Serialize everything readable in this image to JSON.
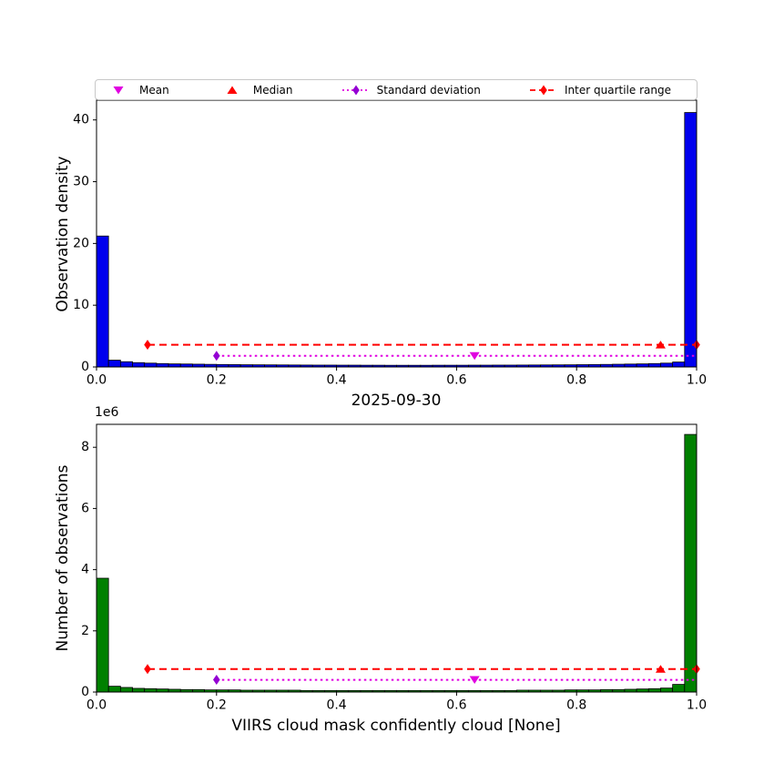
{
  "figure": {
    "background": "#ffffff"
  },
  "legend": {
    "items": [
      {
        "label": "Mean",
        "marker": "triangle-down",
        "marker_color": "#e000e0",
        "line": "none",
        "line_color": "#e000e0"
      },
      {
        "label": "Median",
        "marker": "triangle-up",
        "marker_color": "#ff0000",
        "line": "none",
        "line_color": "#ff0000"
      },
      {
        "label": "Standard deviation",
        "marker": "diamond",
        "marker_color": "#9400d3",
        "line": "dotted",
        "line_color": "#e000e0"
      },
      {
        "label": "Inter quartile range",
        "marker": "diamond",
        "marker_color": "#ff0000",
        "line": "dashed",
        "line_color": "#ff0000"
      }
    ]
  },
  "chart_data": [
    {
      "type": "bar",
      "subtype": "histogram",
      "title": "",
      "ylabel": "Observation density",
      "xlabel": "",
      "bar_color": "#0000ee",
      "edge_color": "#000000",
      "grid": false,
      "xlim": [
        0,
        1
      ],
      "ylim": [
        0,
        43.2
      ],
      "xticks": [
        0,
        0.2,
        0.4,
        0.6,
        0.8,
        1.0
      ],
      "xtick_labels": [
        "0.0",
        "0.2",
        "0.4",
        "0.6",
        "0.8",
        "1.0"
      ],
      "yticks": [
        0,
        10,
        20,
        30,
        40
      ],
      "ytick_labels": [
        "0",
        "10",
        "20",
        "30",
        "40"
      ],
      "bin_start": 0,
      "bin_width": 0.02,
      "values": [
        21.2,
        1.1,
        0.85,
        0.7,
        0.62,
        0.55,
        0.5,
        0.48,
        0.45,
        0.42,
        0.4,
        0.38,
        0.36,
        0.35,
        0.34,
        0.33,
        0.32,
        0.31,
        0.3,
        0.3,
        0.29,
        0.29,
        0.28,
        0.28,
        0.27,
        0.27,
        0.27,
        0.27,
        0.28,
        0.28,
        0.28,
        0.29,
        0.29,
        0.3,
        0.3,
        0.31,
        0.32,
        0.33,
        0.34,
        0.35,
        0.37,
        0.39,
        0.41,
        0.44,
        0.47,
        0.5,
        0.55,
        0.62,
        0.8,
        41.2
      ],
      "overlays": {
        "lines": [
          {
            "name": "inter-quartile-range-line",
            "style": "dashed",
            "color": "#ff0000",
            "x1": 0.085,
            "x2": 1.0,
            "y": 3.6
          },
          {
            "name": "standard-deviation-line",
            "style": "dotted",
            "color": "#e000e0",
            "x1": 0.2,
            "x2": 1.0,
            "y": 1.8
          }
        ],
        "points": [
          {
            "name": "iqr-left-marker",
            "marker": "diamond",
            "color": "#ff0000",
            "x": 0.085,
            "y": 3.6
          },
          {
            "name": "iqr-right-marker",
            "marker": "diamond",
            "color": "#ff0000",
            "x": 1.0,
            "y": 3.6
          },
          {
            "name": "std-left-marker",
            "marker": "diamond",
            "color": "#9400d3",
            "x": 0.2,
            "y": 1.8
          },
          {
            "name": "mean-marker",
            "marker": "triangle-down",
            "color": "#e000e0",
            "x": 0.63,
            "y": 1.8
          },
          {
            "name": "median-marker",
            "marker": "triangle-up",
            "color": "#ff0000",
            "x": 0.94,
            "y": 3.6
          }
        ]
      }
    },
    {
      "type": "bar",
      "subtype": "histogram",
      "title": "2025-09-30",
      "ylabel": "Number of observations",
      "xlabel": "VIIRS cloud mask confidently cloud [None]",
      "y_offset_text": "1e6",
      "y_unit": 1000000,
      "bar_color": "#008000",
      "edge_color": "#000000",
      "grid": false,
      "xlim": [
        0,
        1
      ],
      "ylim": [
        0,
        8.75
      ],
      "xticks": [
        0,
        0.2,
        0.4,
        0.6,
        0.8,
        1.0
      ],
      "xtick_labels": [
        "0.0",
        "0.2",
        "0.4",
        "0.6",
        "0.8",
        "1.0"
      ],
      "yticks": [
        0,
        2,
        4,
        6,
        8
      ],
      "ytick_labels": [
        "0",
        "2",
        "4",
        "6",
        "8"
      ],
      "bin_start": 0,
      "bin_width": 0.02,
      "values": [
        3.72,
        0.19,
        0.15,
        0.12,
        0.11,
        0.1,
        0.09,
        0.08,
        0.08,
        0.07,
        0.07,
        0.07,
        0.06,
        0.06,
        0.06,
        0.06,
        0.06,
        0.05,
        0.05,
        0.05,
        0.05,
        0.05,
        0.05,
        0.05,
        0.05,
        0.05,
        0.05,
        0.05,
        0.05,
        0.05,
        0.05,
        0.05,
        0.05,
        0.05,
        0.05,
        0.06,
        0.06,
        0.06,
        0.06,
        0.07,
        0.07,
        0.07,
        0.08,
        0.08,
        0.09,
        0.1,
        0.11,
        0.13,
        0.25,
        8.42
      ],
      "overlays": {
        "lines": [
          {
            "name": "inter-quartile-range-line",
            "style": "dashed",
            "color": "#ff0000",
            "x1": 0.085,
            "x2": 1.0,
            "y": 0.75
          },
          {
            "name": "standard-deviation-line",
            "style": "dotted",
            "color": "#e000e0",
            "x1": 0.2,
            "x2": 1.0,
            "y": 0.4
          }
        ],
        "points": [
          {
            "name": "iqr-left-marker",
            "marker": "diamond",
            "color": "#ff0000",
            "x": 0.085,
            "y": 0.75
          },
          {
            "name": "iqr-right-marker",
            "marker": "diamond",
            "color": "#ff0000",
            "x": 1.0,
            "y": 0.75
          },
          {
            "name": "std-left-marker",
            "marker": "diamond",
            "color": "#9400d3",
            "x": 0.2,
            "y": 0.4
          },
          {
            "name": "mean-marker",
            "marker": "triangle-down",
            "color": "#e000e0",
            "x": 0.63,
            "y": 0.4
          },
          {
            "name": "median-marker",
            "marker": "triangle-up",
            "color": "#ff0000",
            "x": 0.94,
            "y": 0.75
          }
        ]
      }
    }
  ]
}
